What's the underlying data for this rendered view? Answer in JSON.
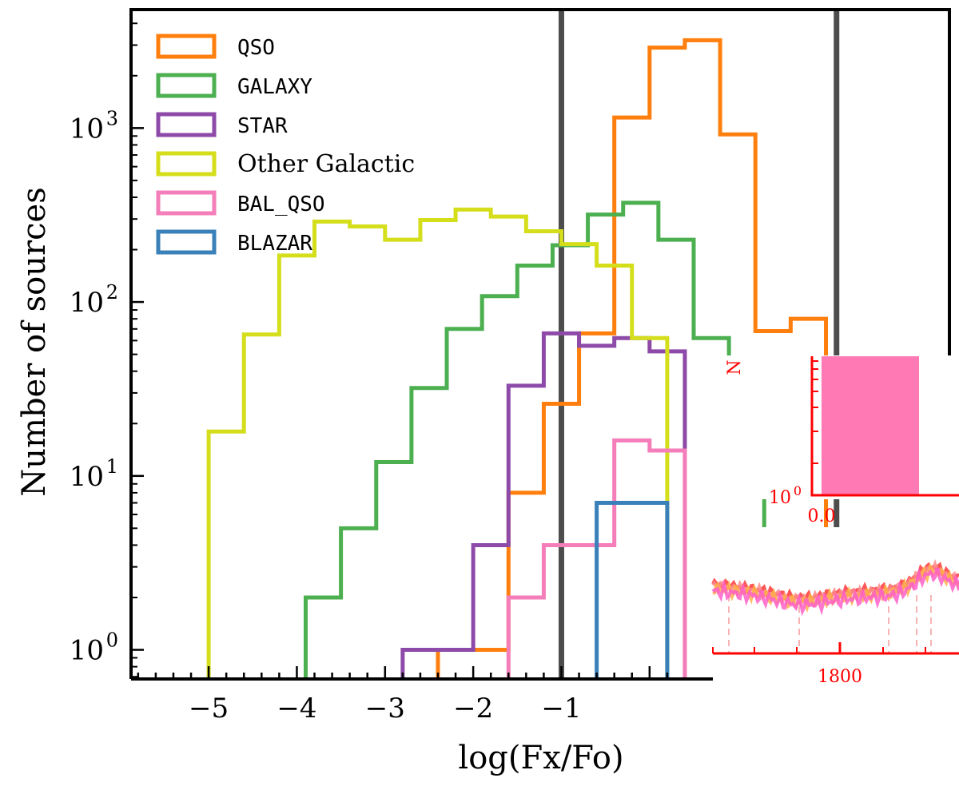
{
  "chart_data": [
    {
      "type": "histogram",
      "xlabel": "log(Fx/Fo)",
      "ylabel": "Number of sources",
      "xlim": [
        -5.88,
        3.4
      ],
      "ylim": [
        0.68,
        4800
      ],
      "yscale": "log",
      "grid": false,
      "legend_position": "top-left",
      "x_ticks": [
        -5,
        -4,
        -3,
        -2,
        -1
      ],
      "x_tick_labels": [
        "−5",
        "−4",
        "−3",
        "−2",
        "−1"
      ],
      "y_ticks": [
        1,
        10,
        100,
        1000
      ],
      "y_tick_labels": [
        "10",
        "10",
        "10",
        "10"
      ],
      "y_tick_exponents": [
        "0",
        "1",
        "2",
        "3"
      ],
      "bin_edges": [
        -5.0,
        -4.6,
        -4.2,
        -3.8,
        -3.4,
        -3.0,
        -2.6,
        -2.2,
        -1.8,
        -1.4,
        -1.0,
        -0.6,
        -0.2,
        0.2,
        0.6,
        1.0,
        1.4,
        1.8,
        2.2
      ],
      "vertical_lines_x": [
        -1.0,
        2.12
      ],
      "vertical_line_color": "#4d4d4d",
      "series": [
        {
          "name": "QSO",
          "color": "#ff7f0e",
          "start_edge": -2.4,
          "end_edge": 2.2,
          "values": [
            1,
            1,
            8,
            26,
            66,
            1150,
            2900,
            3200,
            920,
            68,
            80
          ]
        },
        {
          "name": "GALAXY",
          "color": "#4caf50",
          "start_edge": -3.9,
          "end_edge": 1.0,
          "values": [
            2,
            5,
            12,
            32,
            70,
            108,
            162,
            212,
            318,
            372,
            228,
            62,
            48
          ]
        },
        {
          "name": "STAR",
          "color": "#8e4aa8",
          "start_edge": -2.8,
          "end_edge": 0.2,
          "values": [
            1,
            1,
            4,
            33,
            66,
            56,
            62,
            52
          ]
        },
        {
          "name": "Other Galactic",
          "color": "#d4de1b",
          "start_edge": -5.0,
          "end_edge": 0.2,
          "values": [
            18,
            65,
            185,
            290,
            272,
            228,
            296,
            340,
            310,
            255,
            215,
            162,
            62
          ]
        },
        {
          "name": "BAL_QSO",
          "color": "#f47eb9",
          "start_edge": -1.6,
          "end_edge": 0.6,
          "values": [
            2,
            4,
            4,
            16,
            14
          ]
        },
        {
          "name": "BLAZAR",
          "color": "#3a80b9",
          "start_edge": -0.6,
          "end_edge": 0.2,
          "values": [
            7,
            7
          ]
        }
      ]
    },
    {
      "type": "bar",
      "inset": "upper",
      "x_tick_labels": [
        "0.0"
      ],
      "y_tick_labels": [
        "10"
      ],
      "y_tick_exponents": [
        "0"
      ],
      "axis_color": "#ff0000",
      "bar_color": "#ff79b4",
      "ylabel_fragment": "N"
    },
    {
      "type": "line",
      "inset": "lower",
      "x_tick_labels": [
        "1800"
      ],
      "axis_color": "#ff0000",
      "line_colors": [
        "#ff3a3a",
        "#ff8a8a",
        "#ffb24a",
        "#ff5fc8"
      ]
    }
  ]
}
